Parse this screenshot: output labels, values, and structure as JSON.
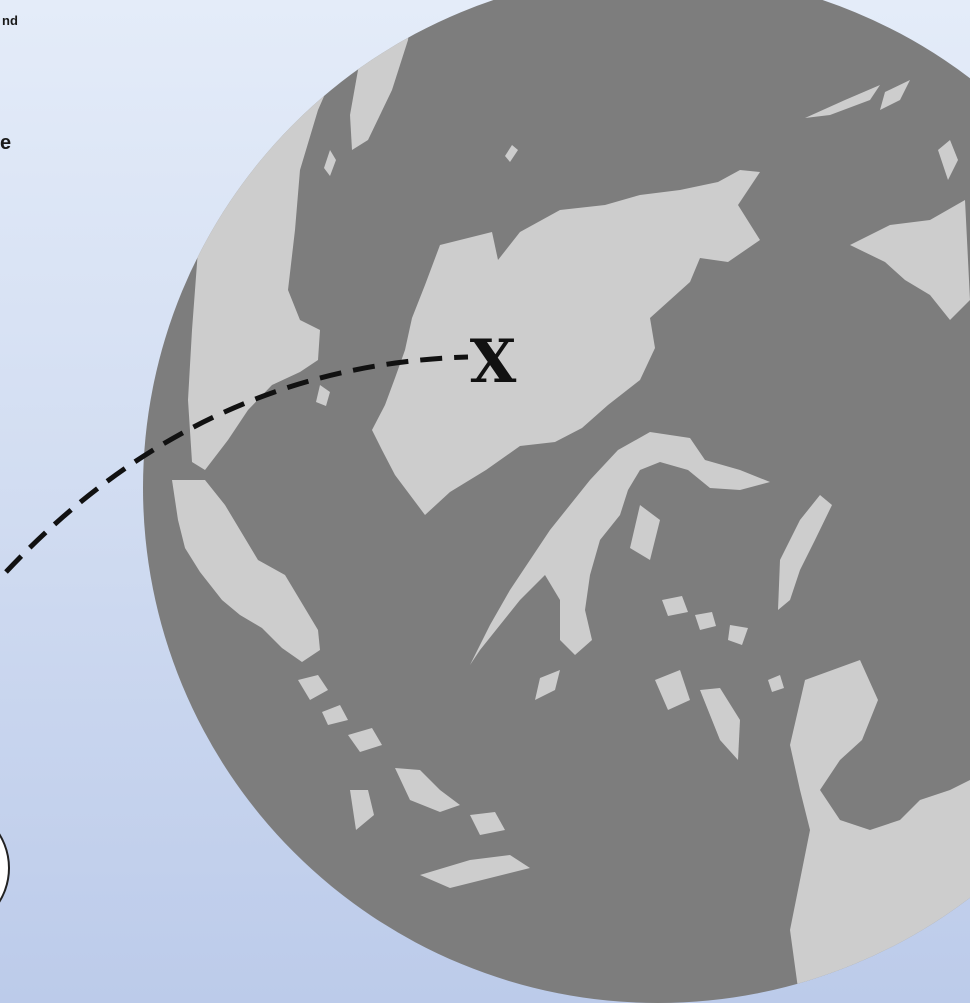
{
  "text_fragments": {
    "top": "nd",
    "middle": "e"
  },
  "map": {
    "destination_marker": "X",
    "route_style": "dashed-curve",
    "land_color": "#cdcdcd",
    "sea_color": "#7d7d7d",
    "background_color": "#d3def2"
  },
  "icons": {
    "globe": "globe-icon",
    "partial_circle": "circle-outline-icon"
  }
}
